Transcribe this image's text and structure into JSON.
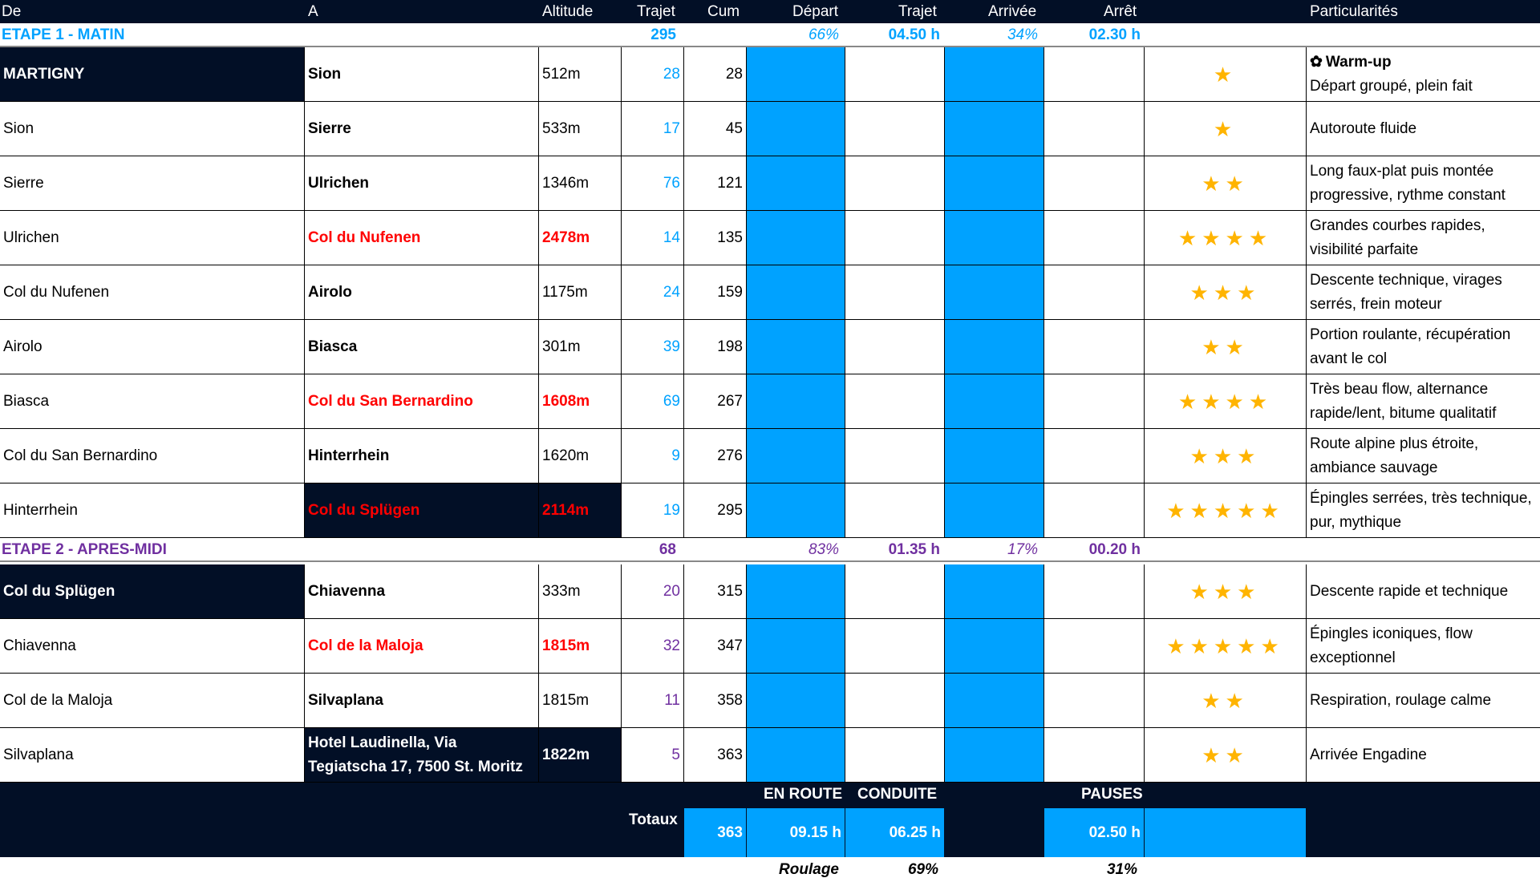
{
  "header": {
    "de": "De",
    "a": "A",
    "altitude": "Altitude",
    "trajet": "Trajet",
    "cum": "Cum",
    "depart": "Départ",
    "trajet2": "Trajet",
    "arrivee": "Arrivée",
    "arret": "Arrêt",
    "particularites": "Particularités"
  },
  "colors": {
    "navy": "#020f26",
    "blue": "#00a2ff",
    "purple": "#7030a0",
    "red": "#ff0000",
    "star": "#ffb400"
  },
  "etapes": [
    {
      "title": "ETAPE 1 - MATIN",
      "trajet": "295",
      "depart_pct": "66%",
      "trajet_h": "04.50 h",
      "arrivee_pct": "34%",
      "arret_h": "02.30 h",
      "color": "#00a2ff"
    },
    {
      "title": "ETAPE 2 - APRES-MIDI",
      "trajet": "68",
      "depart_pct": "83%",
      "trajet_h": "01.35 h",
      "arrivee_pct": "17%",
      "arret_h": "00.20 h",
      "color": "#7030a0"
    }
  ],
  "rows": [
    {
      "de": "MARTIGNY",
      "a": "Sion",
      "alt": "512m",
      "trajet": "28",
      "cum": "28",
      "stars": 1,
      "title": "Warm-up",
      "title_icon": "gear-flower-icon",
      "note": "Départ groupé, plein fait",
      "de_dark": true,
      "col": false,
      "a_dark": false
    },
    {
      "de": "Sion",
      "a": "Sierre",
      "alt": "533m",
      "trajet": "17",
      "cum": "45",
      "stars": 1,
      "note": "Autoroute fluide"
    },
    {
      "de": "Sierre",
      "a": "Ulrichen",
      "alt": "1346m",
      "trajet": "76",
      "cum": "121",
      "stars": 2,
      "note": "Long faux-plat puis montée progressive, rythme constant"
    },
    {
      "de": "Ulrichen",
      "a": "Col du Nufenen",
      "alt": "2478m",
      "trajet": "14",
      "cum": "135",
      "stars": 4,
      "note": "Grandes courbes rapides, visibilité parfaite",
      "col": true
    },
    {
      "de": "Col du Nufenen",
      "a": "Airolo",
      "alt": "1175m",
      "trajet": "24",
      "cum": "159",
      "stars": 3,
      "note": "Descente technique, virages serrés, frein moteur"
    },
    {
      "de": "Airolo",
      "a": "Biasca",
      "alt": "301m",
      "trajet": "39",
      "cum": "198",
      "stars": 2,
      "note": "Portion roulante, récupération avant le col"
    },
    {
      "de": "Biasca",
      "a": "Col du San Bernardino",
      "alt": "1608m",
      "trajet": "69",
      "cum": "267",
      "stars": 4,
      "note": "Très beau flow, alternance rapide/lent, bitume qualitatif",
      "col": true
    },
    {
      "de": "Col du San Bernardino",
      "a": "Hinterrhein",
      "alt": "1620m",
      "trajet": "9",
      "cum": "276",
      "stars": 3,
      "note": "Route alpine plus étroite, ambiance sauvage"
    },
    {
      "de": "Hinterrhein",
      "a": "Col du Splügen",
      "alt": "2114m",
      "trajet": "19",
      "cum": "295",
      "stars": 5,
      "note": "Épingles serrées, très technique, pur, mythique",
      "col": true,
      "a_dark": true
    },
    {
      "de": "Col du Splügen",
      "a": "Chiavenna",
      "alt": "333m",
      "trajet": "20",
      "cum": "315",
      "stars": 3,
      "note": "Descente rapide et technique",
      "de_dark": true
    },
    {
      "de": "Chiavenna",
      "a": "Col de la Maloja",
      "alt": "1815m",
      "trajet": "32",
      "cum": "347",
      "stars": 5,
      "note": "Épingles iconiques, flow exceptionnel",
      "col": true
    },
    {
      "de": "Col de la Maloja",
      "a": "Silvaplana",
      "alt": "1815m",
      "trajet": "11",
      "cum": "358",
      "stars": 2,
      "note": "Respiration, roulage calme"
    },
    {
      "de": "Silvaplana",
      "a": "Hotel Laudinella, Via Tegiatscha 17, 7500 St. Moritz",
      "alt": "1822m",
      "trajet": "5",
      "cum": "363",
      "stars": 2,
      "note": "Arrivée Engadine",
      "a_dark": true
    }
  ],
  "totals": {
    "label": "Totaux",
    "en_route": "EN ROUTE",
    "conduite": "CONDUITE",
    "pauses": "PAUSES",
    "km": "363",
    "en_route_h": "09.15 h",
    "conduite_h": "06.25 h",
    "pauses_h": "02.50 h"
  },
  "footer": {
    "roulage": "Roulage",
    "conduite_pct": "69%",
    "pauses_pct": "31%"
  }
}
